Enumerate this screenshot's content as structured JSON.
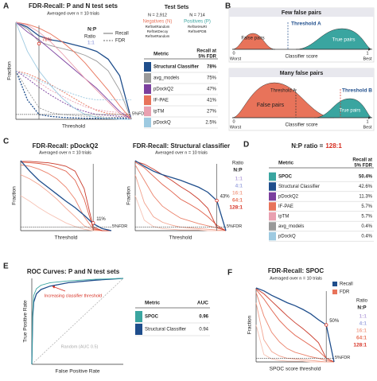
{
  "panel_labels": [
    "A",
    "B",
    "C",
    "D",
    "E",
    "F"
  ],
  "chart_data": [
    {
      "type": "line",
      "title": "FDR-Recall: P and N test sets",
      "subtitle": "Averaged over n = 10 trials",
      "xlabel": "Threshold",
      "ylabel": "Fraction",
      "xlim": [
        0,
        1
      ],
      "ylim": [
        0,
        1
      ],
      "x": [
        0,
        0.1,
        0.2,
        0.3,
        0.4,
        0.5,
        0.6,
        0.7,
        0.8,
        0.9,
        1
      ],
      "vline": 0.2,
      "markers": [
        {
          "label": "78%",
          "value": 0.78
        }
      ],
      "hlines": [
        {
          "label": "5%FDR",
          "value": 0.05
        }
      ],
      "legend": {
        "title": "N:P",
        "subtitle": "Ratio",
        "ratio": "1:1",
        "items": [
          {
            "label": "Recall",
            "style": "solid"
          },
          {
            "label": "FDR",
            "style": "dashed"
          }
        ]
      },
      "series": [
        {
          "color": "#1f4e8c",
          "style": "solid",
          "values": [
            1,
            0.95,
            0.86,
            0.82,
            0.8,
            0.77,
            0.74,
            0.7,
            0.62,
            0.45,
            0
          ]
        },
        {
          "color": "#1f4e8c",
          "style": "dashed",
          "values": [
            0.5,
            0.2,
            0.05,
            0.03,
            0.02,
            0.015,
            0.01,
            0.01,
            0.01,
            0.01,
            0.01
          ]
        },
        {
          "color": "#999999",
          "style": "solid",
          "values": [
            1,
            0.93,
            0.8,
            0.76,
            0.73,
            0.7,
            0.66,
            0.6,
            0.5,
            0.3,
            0
          ]
        },
        {
          "color": "#999999",
          "style": "dashed",
          "values": [
            0.5,
            0.3,
            0.12,
            0.07,
            0.05,
            0.04,
            0.03,
            0.03,
            0.02,
            0.02,
            0.02
          ]
        },
        {
          "color": "#7b3f9e",
          "style": "solid",
          "values": [
            1,
            0.9,
            0.82,
            0.72,
            0.62,
            0.52,
            0.42,
            0.32,
            0.2,
            0.08,
            0
          ]
        },
        {
          "color": "#7b3f9e",
          "style": "dashed",
          "values": [
            0.5,
            0.42,
            0.33,
            0.25,
            0.18,
            0.12,
            0.08,
            0.05,
            0.04,
            0.03,
            0.03
          ]
        },
        {
          "color": "#e8735a",
          "style": "solid",
          "values": [
            1,
            0.98,
            0.94,
            0.88,
            0.8,
            0.7,
            0.58,
            0.44,
            0.3,
            0.14,
            0
          ]
        },
        {
          "color": "#e8735a",
          "style": "dashed",
          "values": [
            0.5,
            0.47,
            0.42,
            0.36,
            0.29,
            0.22,
            0.15,
            0.09,
            0.06,
            0.05,
            0.04
          ]
        },
        {
          "color": "#e9a0b0",
          "style": "solid",
          "values": [
            1,
            0.97,
            0.9,
            0.8,
            0.68,
            0.55,
            0.42,
            0.3,
            0.18,
            0.06,
            0
          ]
        },
        {
          "color": "#e9a0b0",
          "style": "dashed",
          "values": [
            0.5,
            0.45,
            0.38,
            0.3,
            0.24,
            0.18,
            0.13,
            0.1,
            0.08,
            0.07,
            0.06
          ]
        },
        {
          "color": "#9ecae1",
          "style": "solid",
          "values": [
            1,
            0.7,
            0.5,
            0.35,
            0.22,
            0.12,
            0.05,
            0.02,
            0.01,
            0,
            0
          ]
        },
        {
          "color": "#9ecae1",
          "style": "dashed",
          "values": [
            0.5,
            0.45,
            0.4,
            0.35,
            0.3,
            0.26,
            0.22,
            0.2,
            0.2,
            0.2,
            0.2
          ]
        }
      ]
    },
    {
      "type": "line",
      "title": "FDR-Recall: pDockQ2",
      "subtitle": "Averaged over n = 10 trials",
      "xlabel": "Threshold",
      "ylabel": "Fraction",
      "xlim": [
        0,
        1
      ],
      "ylim": [
        0,
        1
      ],
      "x": [
        0,
        0.1,
        0.2,
        0.3,
        0.4,
        0.5,
        0.6,
        0.7,
        0.8,
        0.9,
        1
      ],
      "vline": 0.8,
      "markers": [
        {
          "label": "11%",
          "value": 0.11
        }
      ],
      "hlines": [
        {
          "label": "5%FDR",
          "value": 0.05
        }
      ],
      "series": [
        {
          "color": "#f7c3b5",
          "style": "solid",
          "values": [
            0.5,
            0.42,
            0.33,
            0.25,
            0.18,
            0.11,
            0.06,
            0.02,
            0,
            0,
            0
          ]
        },
        {
          "color": "#f2a38f",
          "style": "solid",
          "values": [
            0.8,
            0.74,
            0.66,
            0.56,
            0.45,
            0.32,
            0.2,
            0.07,
            0.01,
            0,
            0
          ]
        },
        {
          "color": "#eb836c",
          "style": "solid",
          "values": [
            0.94,
            0.92,
            0.88,
            0.82,
            0.74,
            0.62,
            0.45,
            0.2,
            0.02,
            0,
            0
          ]
        },
        {
          "color": "#e0604a",
          "style": "solid",
          "values": [
            0.98,
            0.97,
            0.96,
            0.94,
            0.9,
            0.85,
            0.72,
            0.45,
            0.03,
            0,
            0
          ]
        },
        {
          "color": "#c93a2a",
          "style": "solid",
          "values": [
            0.99,
            0.99,
            0.98,
            0.97,
            0.95,
            0.92,
            0.85,
            0.6,
            0.05,
            0,
            0
          ]
        },
        {
          "color": "#1f4e8c",
          "style": "solid",
          "values": [
            1,
            0.85,
            0.72,
            0.62,
            0.52,
            0.42,
            0.33,
            0.22,
            0.1,
            0.03,
            0
          ]
        }
      ]
    },
    {
      "type": "line",
      "title": "FDR-Recall: Structural classifier",
      "subtitle": "Averaged over n = 10 trials",
      "xlabel": "Threshold",
      "ylabel": "Fraction",
      "xlim": [
        0,
        1
      ],
      "ylim": [
        0,
        1
      ],
      "x": [
        0,
        0.1,
        0.2,
        0.3,
        0.4,
        0.5,
        0.6,
        0.7,
        0.8,
        0.9,
        1
      ],
      "vline": 0.9,
      "markers": [
        {
          "label": "43%",
          "value": 0.43
        }
      ],
      "hlines": [
        {
          "label": "5%FDR",
          "value": 0.05
        }
      ],
      "series": [
        {
          "color": "#f7c3b5",
          "style": "solid",
          "values": [
            0.5,
            0.15,
            0.06,
            0.03,
            0.02,
            0.01,
            0.01,
            0.01,
            0,
            0,
            0
          ]
        },
        {
          "color": "#f2a38f",
          "style": "solid",
          "values": [
            0.8,
            0.4,
            0.2,
            0.12,
            0.08,
            0.05,
            0.04,
            0.03,
            0.02,
            0.01,
            0
          ]
        },
        {
          "color": "#eb836c",
          "style": "solid",
          "values": [
            0.94,
            0.72,
            0.5,
            0.35,
            0.26,
            0.18,
            0.14,
            0.1,
            0.07,
            0.04,
            0
          ]
        },
        {
          "color": "#e0604a",
          "style": "solid",
          "values": [
            0.98,
            0.9,
            0.78,
            0.66,
            0.56,
            0.45,
            0.38,
            0.3,
            0.2,
            0.08,
            0
          ]
        },
        {
          "color": "#c93a2a",
          "style": "solid",
          "values": [
            0.99,
            0.95,
            0.88,
            0.8,
            0.72,
            0.63,
            0.55,
            0.45,
            0.32,
            0.05,
            0
          ]
        },
        {
          "color": "#1f4e8c",
          "style": "solid",
          "values": [
            1,
            0.92,
            0.85,
            0.8,
            0.76,
            0.72,
            0.67,
            0.62,
            0.55,
            0.43,
            0
          ]
        }
      ]
    },
    {
      "type": "line",
      "title": "ROC Curves: P and N test sets",
      "xlabel": "False Positive Rate",
      "ylabel": "True Positive Rate",
      "xlim": [
        0,
        1
      ],
      "ylim": [
        0,
        1
      ],
      "notes": [
        "Random (AUC 0.5)",
        "Increasing classifier threshold"
      ],
      "series": [
        {
          "color": "#bbbbbb",
          "style": "dashed",
          "x": [
            0,
            1
          ],
          "values": [
            0,
            1
          ]
        },
        {
          "color": "#1f4e8c",
          "style": "solid",
          "x": [
            0,
            0.01,
            0.02,
            0.05,
            0.1,
            0.2,
            0.4,
            0.7,
            1
          ],
          "values": [
            0,
            0.55,
            0.72,
            0.82,
            0.87,
            0.91,
            0.95,
            0.98,
            1
          ]
        },
        {
          "color": "#3aa5a0",
          "style": "solid",
          "x": [
            0,
            0.01,
            0.02,
            0.05,
            0.1,
            0.2,
            0.4,
            0.7,
            1
          ],
          "values": [
            0,
            0.6,
            0.8,
            0.88,
            0.92,
            0.95,
            0.97,
            0.99,
            1
          ]
        }
      ]
    },
    {
      "type": "line",
      "title": "FDR-Recall: SPOC",
      "subtitle": "Averaged over n = 10 trials",
      "xlabel": "SPOC score threshold",
      "ylabel": "Fraction",
      "xlim": [
        0,
        1
      ],
      "ylim": [
        0,
        1
      ],
      "x": [
        0,
        0.1,
        0.2,
        0.3,
        0.4,
        0.5,
        0.6,
        0.7,
        0.8,
        0.9,
        1
      ],
      "vline": 0.9,
      "markers": [
        {
          "label": "50%",
          "value": 0.5
        }
      ],
      "hlines": [
        {
          "label": "5%FDR",
          "value": 0.05
        }
      ],
      "legend": {
        "items": [
          {
            "label": "Recall",
            "color": "#1f4e8c"
          },
          {
            "label": "FDR",
            "color": "#e8735a"
          }
        ]
      },
      "series": [
        {
          "color": "#f7c3b5",
          "style": "solid",
          "values": [
            0.5,
            0.1,
            0.04,
            0.02,
            0.01,
            0.01,
            0.01,
            0,
            0,
            0,
            0
          ]
        },
        {
          "color": "#f2a38f",
          "style": "solid",
          "values": [
            0.8,
            0.3,
            0.14,
            0.08,
            0.05,
            0.04,
            0.03,
            0.02,
            0.01,
            0,
            0
          ]
        },
        {
          "color": "#eb836c",
          "style": "solid",
          "values": [
            0.94,
            0.62,
            0.4,
            0.27,
            0.18,
            0.13,
            0.1,
            0.07,
            0.05,
            0.02,
            0
          ]
        },
        {
          "color": "#e0604a",
          "style": "solid",
          "values": [
            0.98,
            0.85,
            0.7,
            0.56,
            0.45,
            0.36,
            0.29,
            0.22,
            0.15,
            0.05,
            0
          ]
        },
        {
          "color": "#c93a2a",
          "style": "solid",
          "values": [
            0.99,
            0.92,
            0.82,
            0.72,
            0.62,
            0.53,
            0.45,
            0.36,
            0.26,
            0.05,
            0
          ]
        },
        {
          "color": "#1f4e8c",
          "style": "solid",
          "values": [
            1,
            0.96,
            0.9,
            0.85,
            0.8,
            0.76,
            0.71,
            0.65,
            0.57,
            0.5,
            0
          ]
        }
      ]
    }
  ],
  "test_sets": {
    "title": "Test Sets",
    "negatives": {
      "count": "N = 2,912",
      "label": "Negatives (N)",
      "sets": [
        "RefSetRandom",
        "RefSetDecoy",
        "RefSetRandom"
      ]
    },
    "positives": {
      "count": "N = 714",
      "label": "Positives (P)",
      "sets": [
        "RefSetHuRI",
        "RefSetPDB"
      ]
    }
  },
  "table_a": {
    "header_metric": "Metric",
    "header_value": [
      "Recall at",
      "5% FDR"
    ],
    "rows": [
      {
        "color": "#1f4e8c",
        "metric": "Structural Classifier",
        "value": "78%"
      },
      {
        "color": "#999999",
        "metric": "avg_models",
        "value": "75%"
      },
      {
        "color": "#7b3f9e",
        "metric": "pDockQ2",
        "value": "47%"
      },
      {
        "color": "#e8735a",
        "metric": "IF-PAE",
        "value": "41%"
      },
      {
        "color": "#e9a0b0",
        "metric": "ipTM",
        "value": "27%"
      },
      {
        "color": "#9ecae1",
        "metric": "pDockQ",
        "value": "2.5%"
      }
    ]
  },
  "diagram_b": {
    "top": {
      "title": "Few false pairs",
      "threshold": "Threshold A",
      "false_pairs": "False pairs",
      "true_pairs": "True pairs",
      "left": "0",
      "left_label": "Worst",
      "axis": "Classifier score",
      "right": "1",
      "right_label": "Best"
    },
    "bottom": {
      "title": "Many false pairs",
      "threshold_a": "Threshold A",
      "threshold_b": "Threshold B",
      "false_pairs": "False pairs",
      "true_pairs": "True pairs",
      "left": "0",
      "left_label": "Worst",
      "axis": "Classifier score",
      "right": "1",
      "right_label": "Best"
    }
  },
  "ratio_legend_c": {
    "title": "Ratio",
    "subtitle": "N:P",
    "items": [
      {
        "label": "1:1",
        "color": "#b9a6dd"
      },
      {
        "label": "4:1",
        "color": "#9fa8e0"
      },
      {
        "label": "16:1",
        "color": "#f2a38f"
      },
      {
        "label": "64:1",
        "color": "#e8735a"
      },
      {
        "label": "128:1",
        "color": "#d62d20"
      }
    ]
  },
  "ratio_legend_f": {
    "title": "Ratio",
    "subtitle": "N:P",
    "items": [
      {
        "label": "1:1",
        "color": "#b9a6dd"
      },
      {
        "label": "4:1",
        "color": "#9fa8e0"
      },
      {
        "label": "16:1",
        "color": "#f2a38f"
      },
      {
        "label": "64:1",
        "color": "#e8735a"
      },
      {
        "label": "128:1",
        "color": "#d62d20"
      }
    ]
  },
  "table_d": {
    "title": "N:P ratio =",
    "title_ratio": "128:1",
    "header_metric": "Metric",
    "header_value": [
      "Recall at",
      "5% FDR"
    ],
    "rows": [
      {
        "color": "#3aa5a0",
        "metric": "SPOC",
        "value": "50.4%"
      },
      {
        "color": "#1f4e8c",
        "metric": "Structural Classifier",
        "value": "42.6%"
      },
      {
        "color": "#7b3f9e",
        "metric": "pDockQ2",
        "value": "11.3%"
      },
      {
        "color": "#e8735a",
        "metric": "IF-PAE",
        "value": "5.7%"
      },
      {
        "color": "#e9a0b0",
        "metric": "ipTM",
        "value": "5.7%"
      },
      {
        "color": "#999999",
        "metric": "avg_models",
        "value": "0.4%"
      },
      {
        "color": "#9ecae1",
        "metric": "pDockQ",
        "value": "0.4%"
      }
    ]
  },
  "table_e": {
    "header_metric": "Metric",
    "header_value": "AUC",
    "rows": [
      {
        "color": "#3aa5a0",
        "metric": "SPOC",
        "value": "0.96"
      },
      {
        "color": "#1f4e8c",
        "metric": "Structural Classifier",
        "value": "0.94"
      }
    ]
  }
}
